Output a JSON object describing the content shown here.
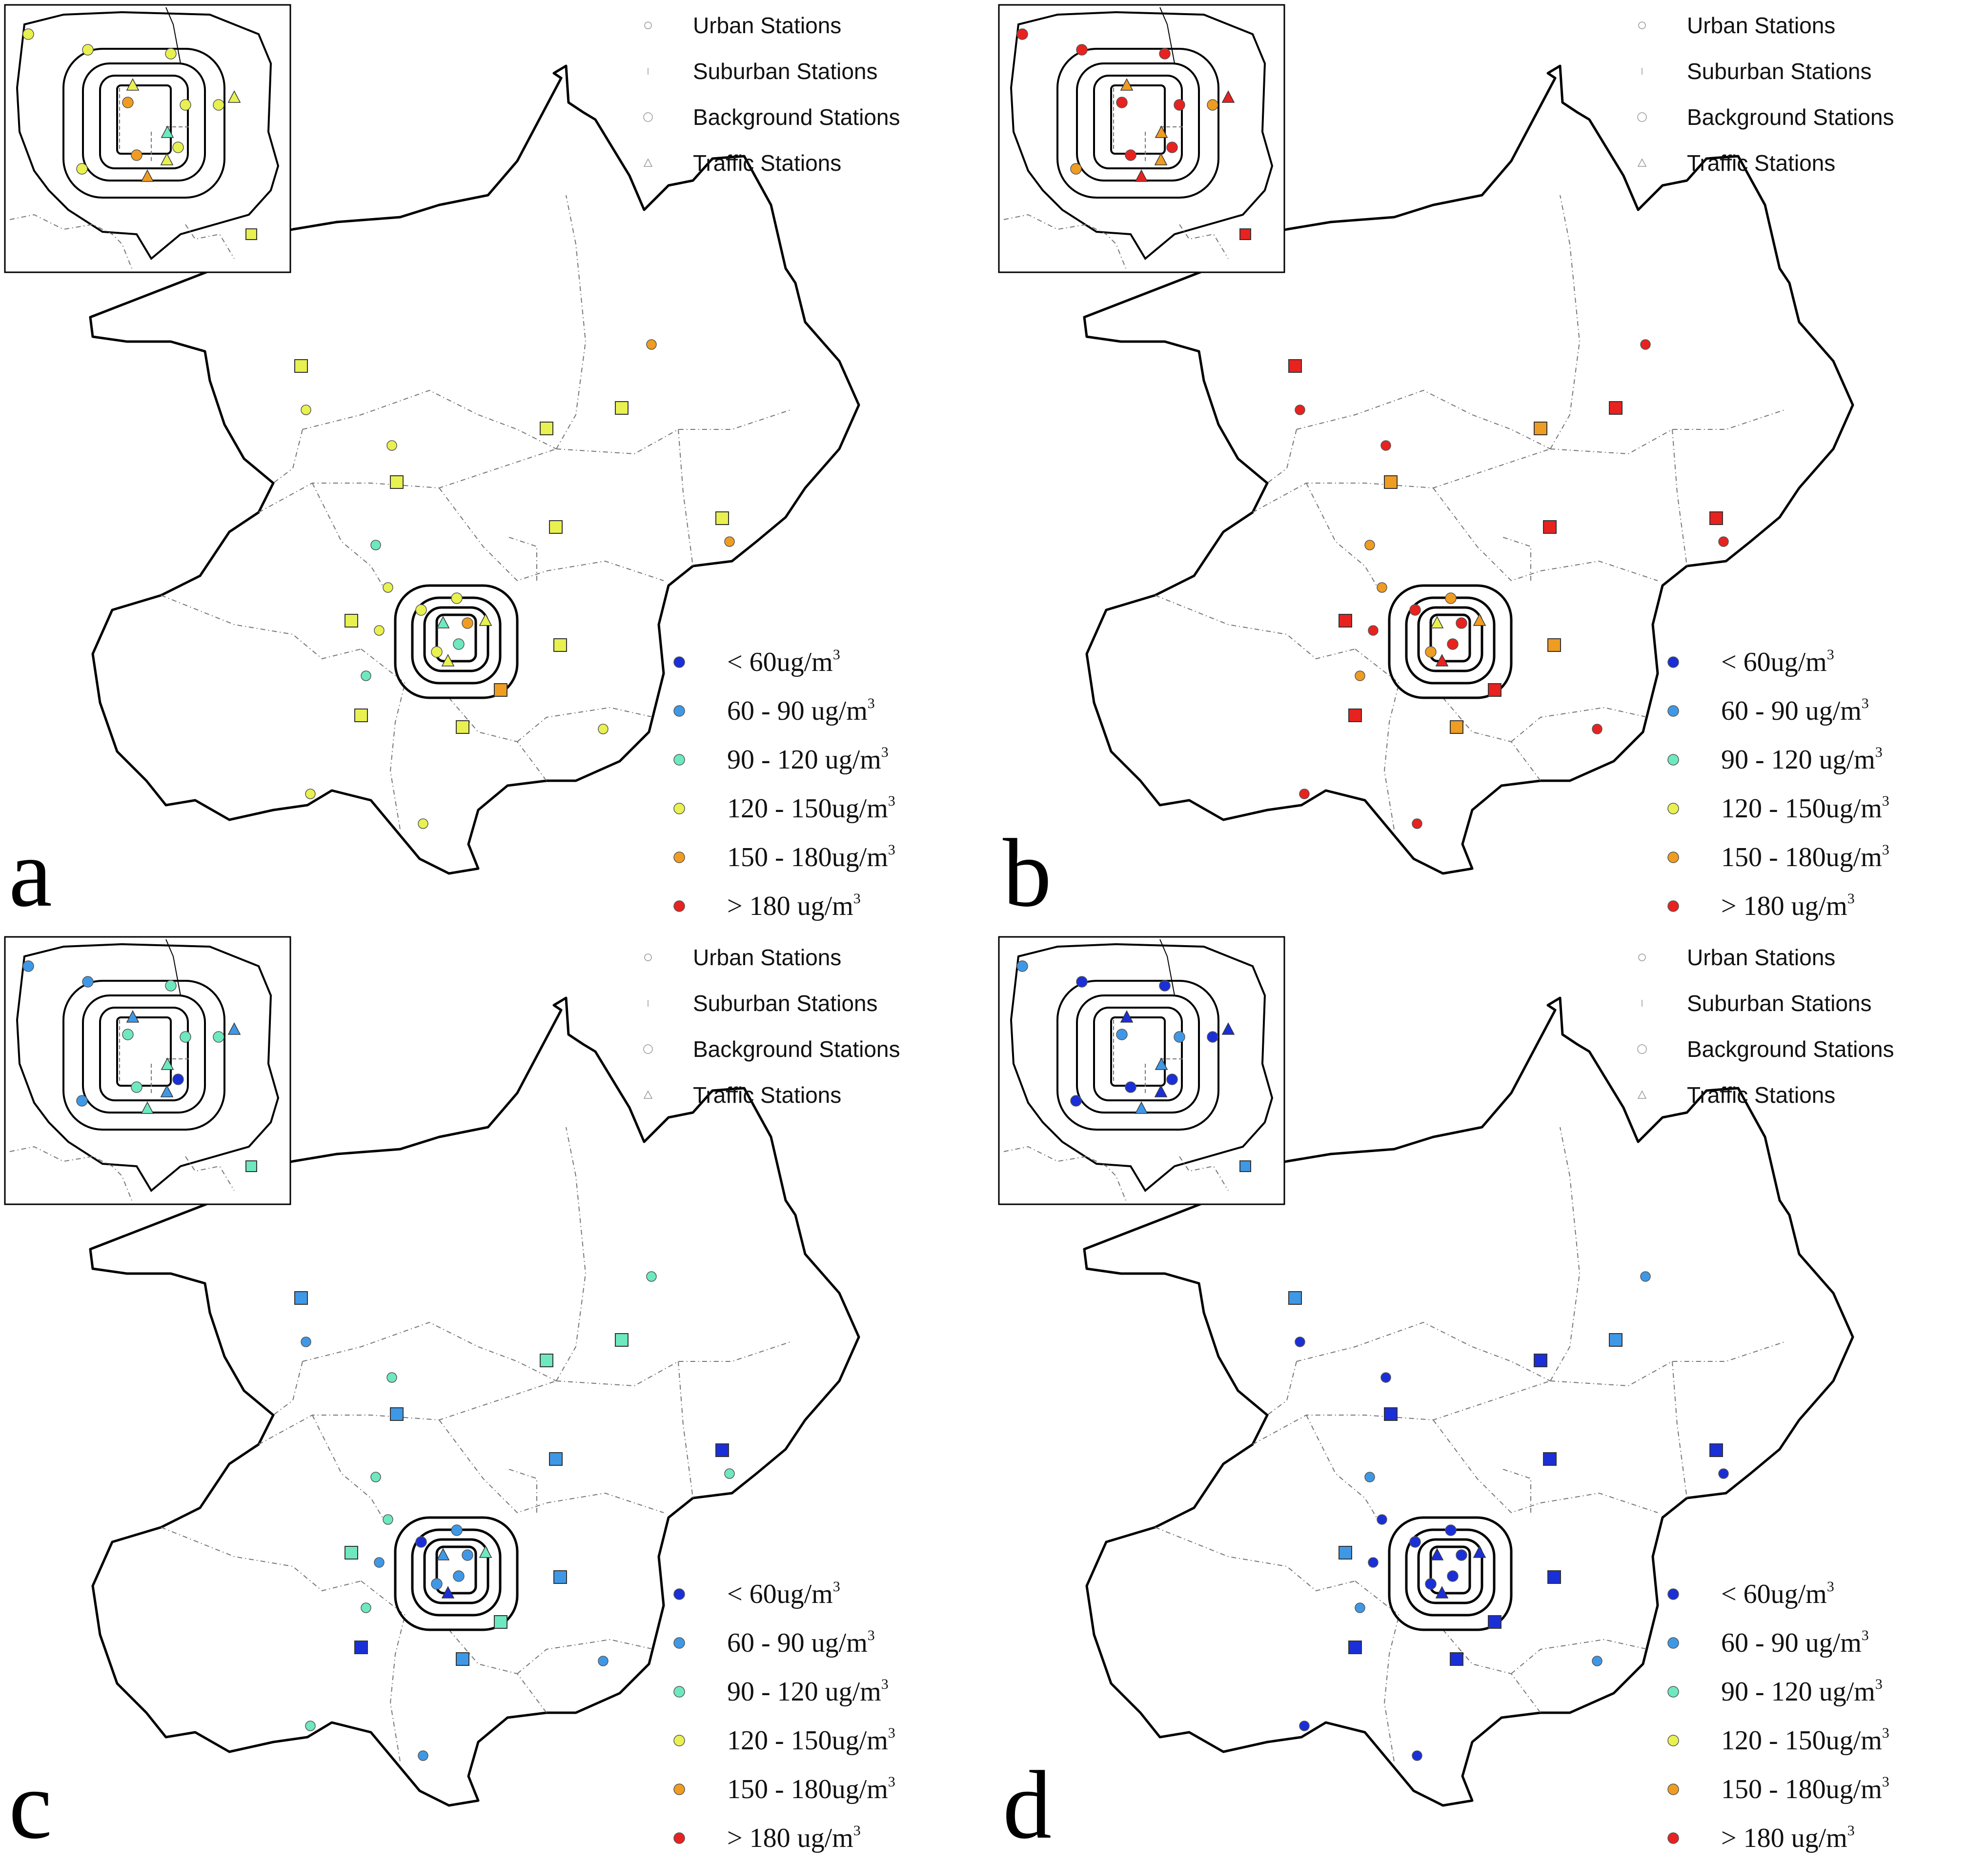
{
  "figure": {
    "panels": [
      {
        "id": "a",
        "label": "a",
        "palette": [
          "#e8f150",
          "#e8f150",
          "#e8f150",
          "#e8f150",
          "#ef9c22",
          "#e8f150",
          "#e8f150",
          "#e8f150",
          "#6ee8c0",
          "#e8f150",
          "#ef9c22",
          "#e8f150"
        ],
        "center": [
          "#e8f150",
          "#e8f150",
          "#6ee8c0",
          "#ef9c22",
          "#e8f150",
          "#6ee8c0",
          "#e8f150",
          "#e8f150"
        ]
      },
      {
        "id": "b",
        "label": "b",
        "palette": [
          "#e8221f",
          "#e8221f",
          "#e8221f",
          "#ef9c22",
          "#e8221f",
          "#e8221f",
          "#ef9c22",
          "#e8221f",
          "#ef9c22",
          "#e8221f",
          "#e8221f",
          "#ef9c22"
        ],
        "center": [
          "#e8221f",
          "#ef9c22",
          "#e8f150",
          "#e8221f",
          "#ef9c22",
          "#e8221f",
          "#ef9c22",
          "#e8221f"
        ]
      },
      {
        "id": "c",
        "label": "c",
        "palette": [
          "#3f98e6",
          "#3f98e6",
          "#6ee8c0",
          "#3f98e6",
          "#6ee8c0",
          "#6ee8c0",
          "#6ee8c0",
          "#3f98e6",
          "#6ee8c0",
          "#1a2fd8",
          "#6ee8c0",
          "#3f98e6"
        ],
        "center": [
          "#1a2fd8",
          "#3f98e6",
          "#3f98e6",
          "#3f98e6",
          "#6ee8c0",
          "#3f98e6",
          "#3f98e6",
          "#1a2fd8"
        ]
      },
      {
        "id": "d",
        "label": "d",
        "palette": [
          "#3f98e6",
          "#1a2fd8",
          "#1a2fd8",
          "#1a2fd8",
          "#3f98e6",
          "#3f98e6",
          "#1a2fd8",
          "#1a2fd8",
          "#3f98e6",
          "#1a2fd8",
          "#1a2fd8",
          "#1a2fd8"
        ],
        "center": [
          "#1a2fd8",
          "#1a2fd8",
          "#1a2fd8",
          "#1a2fd8",
          "#1a2fd8",
          "#1a2fd8",
          "#1a2fd8",
          "#1a2fd8"
        ]
      }
    ],
    "station_legend": [
      "Urban Stations",
      "Suburban Stations",
      "Background Stations",
      "Traffic Stations"
    ],
    "concentration_legend": [
      {
        "label": "< 60ug/m",
        "sup": "3",
        "color": "#1a2fd8"
      },
      {
        "label": "60 - 90 ug/m",
        "sup": "3",
        "color": "#3f98e6"
      },
      {
        "label": "90 - 120 ug/m",
        "sup": "3",
        "color": "#6ee8c0"
      },
      {
        "label": "120 - 150ug/m",
        "sup": "3",
        "color": "#e8f150"
      },
      {
        "label": "150 - 180ug/m",
        "sup": "3",
        "color": "#ef9c22"
      },
      {
        "label": "> 180 ug/m",
        "sup": "3",
        "color": "#e8221f"
      }
    ]
  }
}
